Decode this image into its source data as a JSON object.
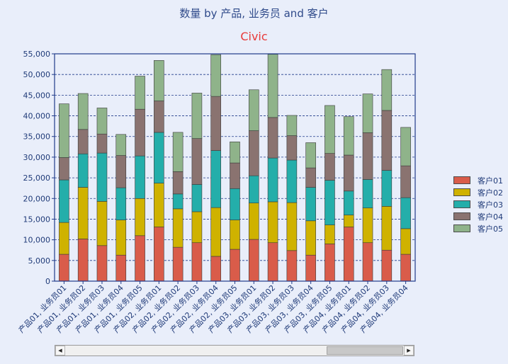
{
  "chart_data": {
    "type": "bar",
    "stacked": true,
    "title": "数量 by 产品, 业务员 and 客户",
    "subtitle": "Civic",
    "xlabel": "",
    "ylabel": "",
    "ylim": [
      0,
      55000
    ],
    "yticks": [
      "0",
      "5,000",
      "10,000",
      "15,000",
      "20,000",
      "25,000",
      "30,000",
      "35,000",
      "40,000",
      "45,000",
      "50,000",
      "55,000"
    ],
    "grid": true,
    "legend_position": "right",
    "categories": [
      "产品01, 业务员01",
      "产品01, 业务员02",
      "产品01, 业务员03",
      "产品01, 业务员04",
      "产品01, 业务员05",
      "产品02, 业务员01",
      "产品02, 业务员02",
      "产品02, 业务员03",
      "产品02, 业务员04",
      "产品02, 业务员05",
      "产品03, 业务员01",
      "产品03, 业务员02",
      "产品03, 业务员03",
      "产品03, 业务员04",
      "产品03, 业务员05",
      "产品04, 业务员01",
      "产品04, 业务员02",
      "产品04, 业务员03",
      "产品04, 业务员04"
    ],
    "series": [
      {
        "name": "客户01",
        "color": "#d95c4a",
        "values": [
          6500,
          10200,
          8600,
          6300,
          11000,
          13100,
          8200,
          9300,
          6000,
          7700,
          10100,
          9300,
          7400,
          6300,
          9000,
          13100,
          9300,
          7500,
          6500
        ]
      },
      {
        "name": "客户02",
        "color": "#cfb200",
        "values": [
          7700,
          12500,
          10700,
          8500,
          9000,
          10600,
          9300,
          7500,
          11800,
          7100,
          8800,
          9900,
          11600,
          8300,
          4600,
          2900,
          8400,
          10600,
          6200
        ]
      },
      {
        "name": "客户03",
        "color": "#24aeaa",
        "values": [
          10300,
          8100,
          11700,
          7800,
          10300,
          12300,
          3600,
          6600,
          13800,
          7600,
          6600,
          10600,
          10300,
          8100,
          10800,
          5800,
          6900,
          8700,
          7500
        ]
      },
      {
        "name": "客户04",
        "color": "#8a7370",
        "values": [
          5400,
          5900,
          4600,
          7800,
          11300,
          7600,
          5400,
          11100,
          13100,
          6200,
          10900,
          9800,
          5900,
          4700,
          6500,
          8700,
          11300,
          14500,
          7700
        ]
      },
      {
        "name": "客户05",
        "color": "#8fb38a",
        "values": [
          13000,
          8700,
          6300,
          5100,
          8000,
          9800,
          9500,
          11000,
          10100,
          5100,
          9900,
          15300,
          4900,
          6100,
          11600,
          9300,
          9400,
          9900,
          9300
        ]
      }
    ]
  },
  "scrollbar": {
    "left_arrow": "◀",
    "right_arrow": "▶"
  }
}
